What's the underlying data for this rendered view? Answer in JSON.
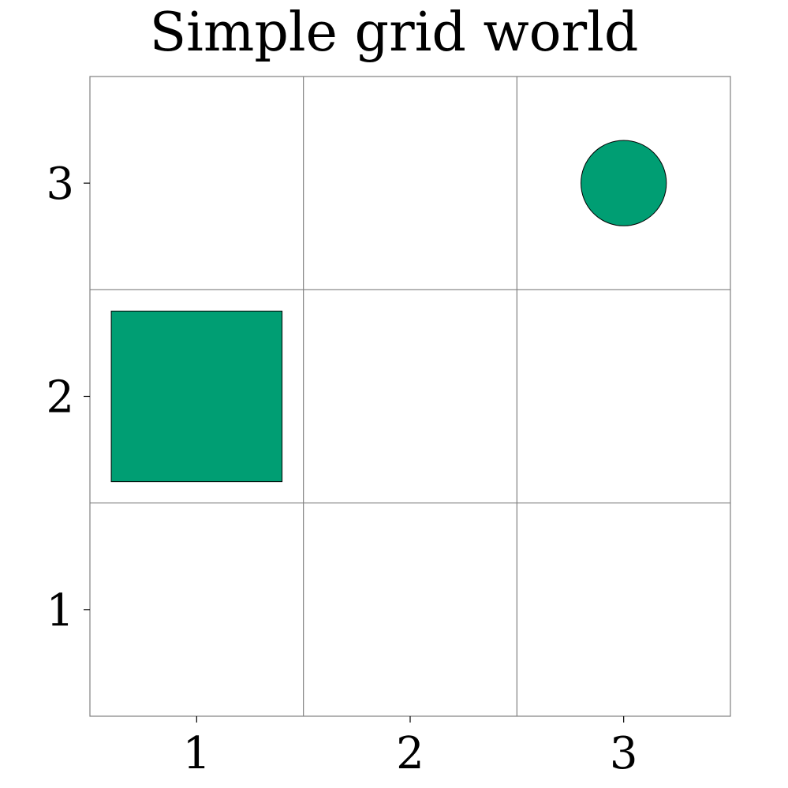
{
  "chart_data": {
    "type": "scatter",
    "title": "Simple grid world",
    "xlabel": "",
    "ylabel": "",
    "xlim": [
      0.5,
      3.5
    ],
    "ylim": [
      0.5,
      3.5
    ],
    "x_ticks": [
      1,
      2,
      3
    ],
    "y_ticks": [
      1,
      2,
      3
    ],
    "grid": true,
    "colors": {
      "marker_fill": "#009e73",
      "marker_edge": "#000000",
      "grid": "#808080"
    },
    "markers": [
      {
        "shape": "square",
        "x": 1,
        "y": 2,
        "size": 0.8
      },
      {
        "shape": "circle",
        "x": 3,
        "y": 3,
        "size": 0.4
      }
    ]
  }
}
